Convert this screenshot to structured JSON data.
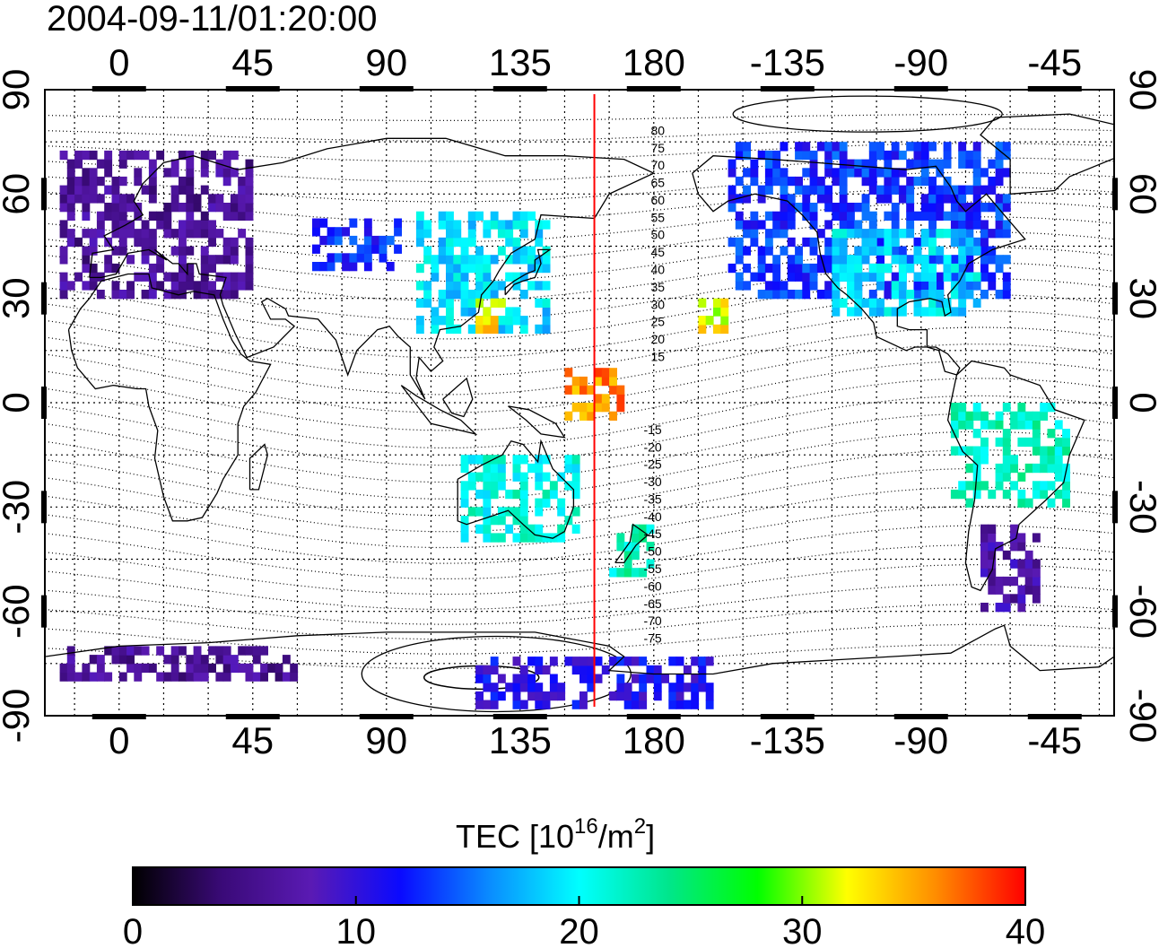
{
  "title": "2004-09-11/01:20:00",
  "map": {
    "lon_ticks_bottom": [
      "0",
      "45",
      "90",
      "135",
      "180",
      "-135",
      "-90",
      "-45"
    ],
    "lon_ticks_top": [
      "0",
      "45",
      "90",
      "135",
      "180",
      "-135",
      "-90",
      "-45"
    ],
    "lat_ticks_left": [
      "90",
      "60",
      "30",
      "0",
      "-30",
      "-60",
      "-90"
    ],
    "lat_ticks_right": [
      "90",
      "60",
      "30",
      "0",
      "-30",
      "-60",
      "-90"
    ],
    "lon_tick_values": [
      0,
      45,
      90,
      135,
      180,
      225,
      270,
      315
    ],
    "lat_tick_values": [
      90,
      60,
      30,
      0,
      -30,
      -60,
      -90
    ],
    "lon_range": [
      -25,
      335
    ],
    "lat_range": [
      -90,
      90
    ],
    "grid": true,
    "terminator_lon": 160,
    "contour_labels_north": [
      "80",
      "75",
      "70",
      "65",
      "60",
      "55",
      "50",
      "45",
      "40",
      "35",
      "30",
      "25",
      "20",
      "15"
    ],
    "contour_labels_south": [
      "-15",
      "-20",
      "-25",
      "-30",
      "-35",
      "-40",
      "-45",
      "-50",
      "-55",
      "-60",
      "-65",
      "-70",
      "-75"
    ],
    "colors": {
      "terminator": "#ff0000",
      "coastline": "#000000",
      "grid": "#000000"
    }
  },
  "colorbar": {
    "title_main": "TEC  [10",
    "title_sup1": "16",
    "title_mid": "/m",
    "title_sup2": "2",
    "title_end": "]",
    "tick_labels": [
      "0",
      "10",
      "20",
      "30",
      "40"
    ],
    "tick_values": [
      0,
      10,
      20,
      30,
      40
    ],
    "range": [
      0,
      40
    ],
    "stops": [
      "#000000",
      "#3a0a78",
      "#5a1ab4",
      "#0a0aff",
      "#0a8cff",
      "#00ffff",
      "#00e68c",
      "#00ff00",
      "#ffff00",
      "#ff8c00",
      "#ff0000"
    ]
  },
  "chart_data": {
    "type": "heatmap",
    "title": "2004-09-11/01:20:00",
    "value_label": "TEC  [10^16/m^2]",
    "value_range": [
      0,
      40
    ],
    "x_ticks": [
      "0",
      "45",
      "90",
      "135",
      "180",
      "-135",
      "-90",
      "-45"
    ],
    "y_ticks": [
      "90",
      "60",
      "30",
      "0",
      "-30",
      "-60",
      "-90"
    ],
    "regions": [
      {
        "lon_min": -20,
        "lon_max": 45,
        "lat_min": 30,
        "lat_max": 72,
        "tec": 6
      },
      {
        "lon_min": 65,
        "lon_max": 95,
        "lat_min": 38,
        "lat_max": 52,
        "tec": 13
      },
      {
        "lon_min": 100,
        "lon_max": 145,
        "lat_min": 20,
        "lat_max": 55,
        "tec": 19
      },
      {
        "lon_min": 120,
        "lon_max": 130,
        "lat_min": 20,
        "lat_max": 28,
        "tec": 33
      },
      {
        "lon_min": 150,
        "lon_max": 170,
        "lat_min": -5,
        "lat_max": 10,
        "tec": 36
      },
      {
        "lon_min": 115,
        "lon_max": 155,
        "lat_min": -40,
        "lat_max": -15,
        "tec": 21
      },
      {
        "lon_min": 165,
        "lon_max": 180,
        "lat_min": -50,
        "lat_max": -35,
        "tec": 22
      },
      {
        "lon_min": 195,
        "lon_max": 205,
        "lat_min": 20,
        "lat_max": 30,
        "tec": 32
      },
      {
        "lon_min": 205,
        "lon_max": 300,
        "lat_min": 30,
        "lat_max": 75,
        "tec": 13
      },
      {
        "lon_min": 240,
        "lon_max": 290,
        "lat_min": 25,
        "lat_max": 50,
        "tec": 19
      },
      {
        "lon_min": 280,
        "lon_max": 320,
        "lat_min": -30,
        "lat_max": 0,
        "tec": 22
      },
      {
        "lon_min": 290,
        "lon_max": 310,
        "lat_min": -60,
        "lat_max": -35,
        "tec": 7
      },
      {
        "lon_min": -20,
        "lon_max": 60,
        "lat_min": -80,
        "lat_max": -70,
        "tec": 6
      },
      {
        "lon_min": 120,
        "lon_max": 200,
        "lat_min": -88,
        "lat_max": -75,
        "tec": 11
      }
    ]
  }
}
